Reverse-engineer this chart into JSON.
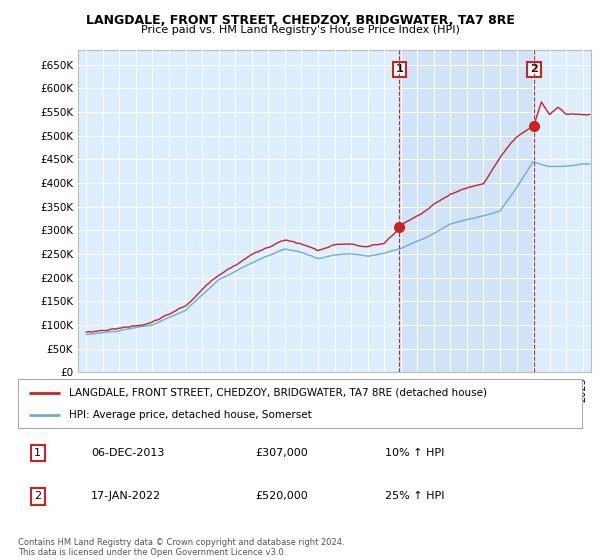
{
  "title": "LANGDALE, FRONT STREET, CHEDZOY, BRIDGWATER, TA7 8RE",
  "subtitle": "Price paid vs. HM Land Registry's House Price Index (HPI)",
  "legend_line1": "LANGDALE, FRONT STREET, CHEDZOY, BRIDGWATER, TA7 8RE (detached house)",
  "legend_line2": "HPI: Average price, detached house, Somerset",
  "transaction1_label": "1",
  "transaction1_date": "06-DEC-2013",
  "transaction1_price": "£307,000",
  "transaction1_hpi": "10% ↑ HPI",
  "transaction2_label": "2",
  "transaction2_date": "17-JAN-2022",
  "transaction2_price": "£520,000",
  "transaction2_hpi": "25% ↑ HPI",
  "footer": "Contains HM Land Registry data © Crown copyright and database right 2024.\nThis data is licensed under the Open Government Licence v3.0.",
  "hpi_color": "#6baed6",
  "price_color": "#cc2222",
  "vline_color": "#cc2222",
  "marker1_x": 2013.92,
  "marker1_y": 307000,
  "marker2_x": 2022.05,
  "marker2_y": 520000,
  "ylim": [
    0,
    680000
  ],
  "xlim_start": 1994.5,
  "xlim_end": 2025.5,
  "plot_bg_color": "#ddeeff",
  "fig_bg_color": "#ffffff",
  "shade_color": "#cce0f5"
}
